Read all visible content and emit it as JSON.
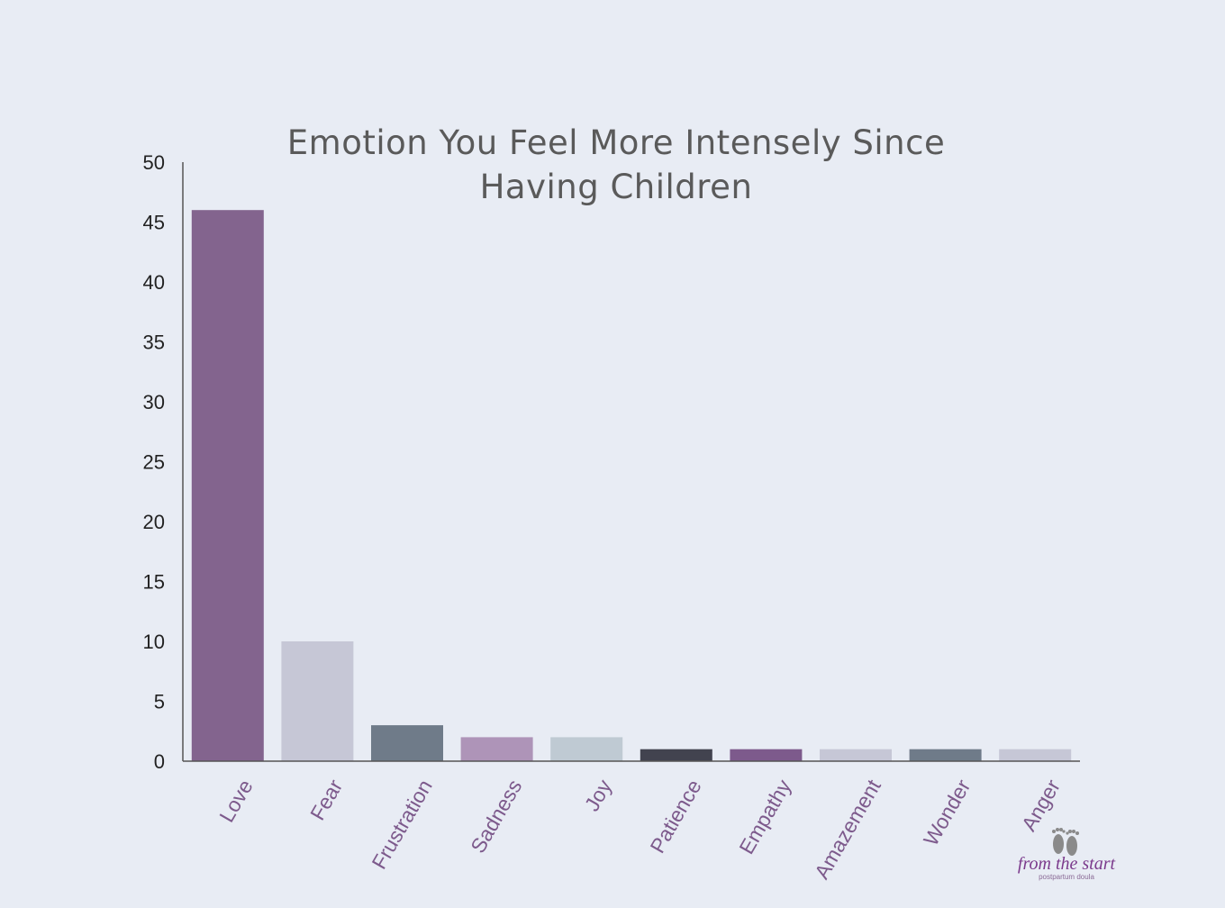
{
  "chart_data": {
    "type": "bar",
    "title": "Emotion You Feel More Intensely Since Having Children",
    "categories": [
      "Love",
      "Fear",
      "Frustration",
      "Sadness",
      "Joy",
      "Patience",
      "Empathy",
      "Amazement",
      "Wonder",
      "Anger"
    ],
    "values": [
      46,
      10,
      3,
      2,
      2,
      1,
      1,
      1,
      1,
      1
    ],
    "bar_colors": [
      "#83648e",
      "#c6c7d6",
      "#6f7b89",
      "#ae94b8",
      "#bfcad3",
      "#42434f",
      "#7d5a8c",
      "#c6c7d6",
      "#6f7b89",
      "#c6c7d6"
    ],
    "xlabel": "",
    "ylabel": "",
    "ylim": [
      0,
      50
    ],
    "yticks": [
      0,
      5,
      10,
      15,
      20,
      25,
      30,
      35,
      40,
      45,
      50
    ],
    "grid": false,
    "legend": "none"
  },
  "logo": {
    "text": "from the start",
    "subtext": "postpartum doula",
    "icon": "baby-feet-icon",
    "color": "#7b3a8c"
  },
  "colors": {
    "background": "#e8ecf4",
    "title": "#5a5a5a",
    "category_label": "#7d5a8c",
    "axis": "#555555"
  }
}
